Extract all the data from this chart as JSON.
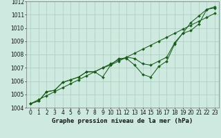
{
  "xlabel": "Graphe pression niveau de la mer (hPa)",
  "background_color": "#ceeae0",
  "grid_color": "#aaccbb",
  "line_color": "#1a5c1a",
  "x_hours": [
    0,
    1,
    2,
    3,
    4,
    5,
    6,
    7,
    8,
    9,
    10,
    11,
    12,
    13,
    14,
    15,
    16,
    17,
    18,
    19,
    20,
    21,
    22,
    23
  ],
  "line_straight": [
    1004.3,
    1004.6,
    1004.9,
    1005.2,
    1005.5,
    1005.8,
    1006.1,
    1006.4,
    1006.7,
    1007.0,
    1007.3,
    1007.6,
    1007.8,
    1008.1,
    1008.4,
    1008.7,
    1009.0,
    1009.3,
    1009.6,
    1009.9,
    1010.2,
    1010.5,
    1010.8,
    1011.1
  ],
  "line_smooth": [
    1004.3,
    1004.5,
    1005.2,
    1005.3,
    1005.9,
    1006.1,
    1006.3,
    1006.7,
    1006.7,
    1007.0,
    1007.2,
    1007.5,
    1007.8,
    1007.7,
    1007.3,
    1007.2,
    1007.5,
    1007.8,
    1008.9,
    1009.6,
    1010.4,
    1010.9,
    1011.4,
    1011.6
  ],
  "line_detail": [
    1004.3,
    1004.5,
    1005.2,
    1005.3,
    1005.9,
    1006.1,
    1006.3,
    1006.7,
    1006.7,
    1006.3,
    1007.2,
    1007.7,
    1007.7,
    1007.2,
    1006.5,
    1006.3,
    1007.1,
    1007.5,
    1008.8,
    1009.6,
    1009.8,
    1010.3,
    1011.4,
    1011.5
  ],
  "ylim": [
    1004.0,
    1012.0
  ],
  "yticks": [
    1004,
    1005,
    1006,
    1007,
    1008,
    1009,
    1010,
    1011,
    1012
  ],
  "xlabel_fontsize": 6.5,
  "tick_fontsize": 5.5
}
